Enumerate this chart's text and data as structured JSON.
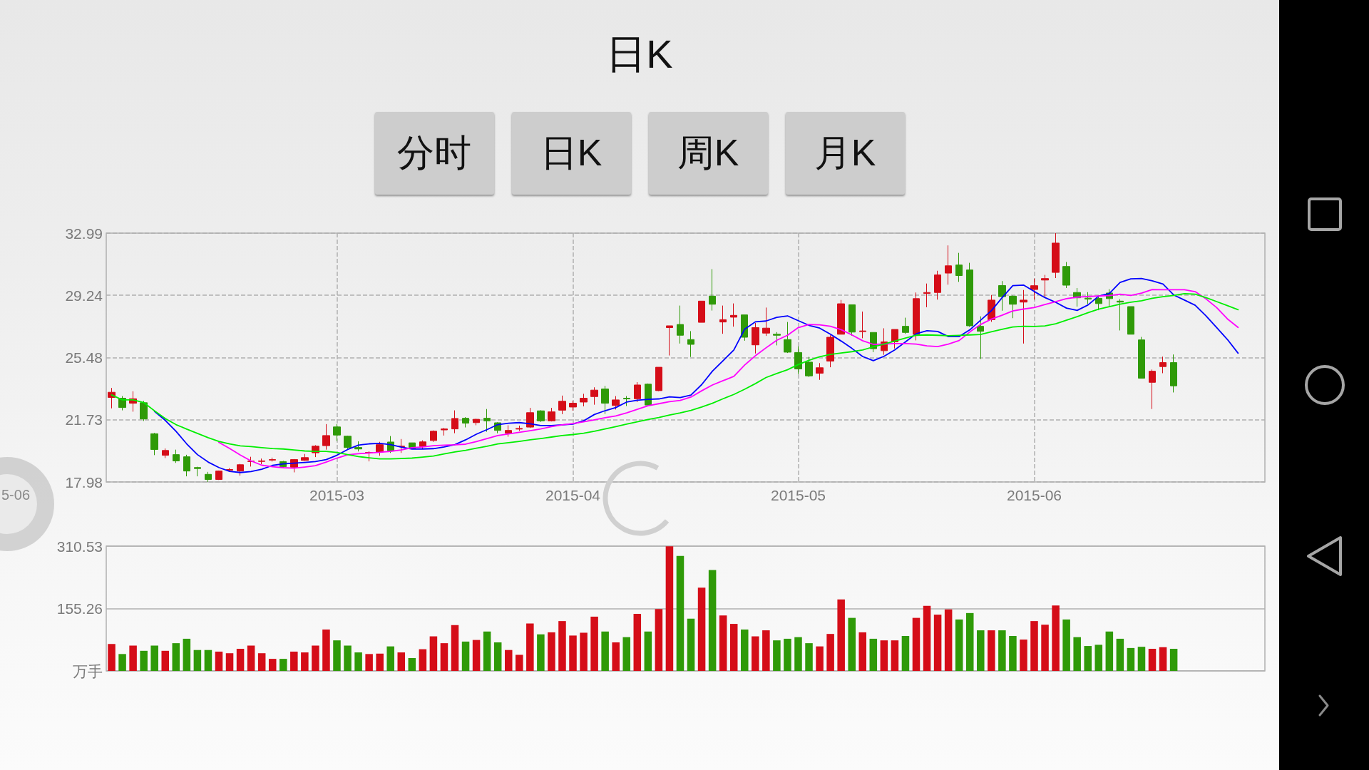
{
  "chart_data": [
    {
      "type": "other",
      "title": "日K",
      "annotations": [
        "分时",
        "日K",
        "周K",
        "月K"
      ]
    },
    {
      "type": "candlestick",
      "categories": [
        null,
        null,
        null,
        null,
        null,
        null,
        null,
        null,
        null,
        null,
        null,
        null,
        null,
        null,
        null,
        null,
        null,
        null,
        null,
        null,
        null,
        "2015-03",
        null,
        null,
        null,
        null,
        null,
        null,
        null,
        null,
        null,
        null,
        null,
        null,
        null,
        null,
        null,
        null,
        null,
        null,
        null,
        null,
        null,
        "2015-04",
        null,
        null,
        null,
        null,
        null,
        null,
        null,
        null,
        null,
        null,
        null,
        null,
        null,
        null,
        null,
        null,
        null,
        null,
        null,
        null,
        "2015-05",
        null,
        null,
        null,
        null,
        null,
        null,
        null,
        null,
        null,
        null,
        null,
        null,
        null,
        null,
        null,
        null,
        null,
        null,
        null,
        null,
        null,
        "2015-06",
        null,
        null,
        null,
        null,
        null,
        null,
        null,
        null,
        null,
        null,
        null,
        null,
        null,
        null,
        null,
        null,
        null,
        null,
        null,
        null,
        null
      ],
      "ohlc": [
        [
          23.08,
          23.65,
          22.42,
          23.39
        ],
        [
          23.03,
          23.16,
          22.3,
          22.47
        ],
        [
          22.73,
          23.45,
          22.22,
          23.0
        ],
        [
          22.76,
          22.87,
          21.66,
          21.78
        ],
        [
          20.89,
          20.94,
          19.6,
          19.94
        ],
        [
          19.59,
          20.0,
          19.42,
          19.88
        ],
        [
          19.63,
          19.93,
          19.13,
          19.25
        ],
        [
          19.5,
          19.62,
          18.32,
          18.64
        ],
        [
          18.85,
          18.9,
          18.32,
          18.79
        ],
        [
          18.44,
          18.59,
          17.98,
          18.13
        ],
        [
          18.13,
          18.67,
          18.1,
          18.64
        ],
        [
          18.69,
          18.81,
          18.61,
          18.73
        ],
        [
          18.64,
          19.07,
          18.36,
          19.02
        ],
        [
          19.21,
          19.5,
          18.91,
          19.24
        ],
        [
          19.22,
          19.39,
          19.05,
          19.25
        ],
        [
          19.3,
          19.45,
          19.21,
          19.33
        ],
        [
          19.21,
          19.25,
          18.85,
          18.9
        ],
        [
          18.87,
          19.36,
          18.56,
          19.33
        ],
        [
          19.28,
          19.67,
          19.25,
          19.45
        ],
        [
          19.74,
          20.2,
          19.48,
          20.14
        ],
        [
          20.17,
          21.47,
          19.93,
          20.78
        ],
        [
          21.3,
          21.47,
          20.45,
          20.81
        ],
        [
          20.74,
          20.77,
          19.97,
          20.06
        ],
        [
          20.06,
          20.43,
          19.82,
          19.97
        ],
        [
          19.73,
          19.83,
          19.22,
          19.76
        ],
        [
          19.79,
          20.4,
          19.56,
          20.23
        ],
        [
          20.39,
          20.75,
          19.73,
          19.86
        ],
        [
          20.11,
          20.57,
          19.73,
          20.14
        ],
        [
          20.34,
          20.34,
          20.0,
          20.0
        ],
        [
          20.12,
          20.49,
          20.0,
          20.4
        ],
        [
          20.48,
          21.09,
          20.4,
          21.04
        ],
        [
          21.12,
          21.24,
          20.78,
          21.18
        ],
        [
          21.18,
          22.3,
          20.92,
          21.81
        ],
        [
          21.82,
          21.89,
          21.27,
          21.53
        ],
        [
          21.56,
          21.79,
          21.4,
          21.76
        ],
        [
          21.82,
          22.38,
          21.01,
          21.67
        ],
        [
          21.55,
          21.58,
          20.92,
          21.09
        ],
        [
          20.92,
          21.4,
          20.71,
          21.09
        ],
        [
          21.17,
          21.38,
          21.06,
          21.21
        ],
        [
          21.29,
          22.45,
          21.24,
          22.16
        ],
        [
          22.27,
          22.31,
          21.6,
          21.67
        ],
        [
          21.67,
          22.45,
          21.63,
          22.21
        ],
        [
          22.31,
          23.19,
          22.07,
          22.85
        ],
        [
          22.5,
          22.88,
          22.28,
          22.73
        ],
        [
          22.8,
          23.3,
          22.54,
          23.03
        ],
        [
          23.13,
          23.69,
          22.64,
          23.52
        ],
        [
          23.59,
          23.78,
          22.08,
          22.73
        ],
        [
          22.59,
          23.16,
          22.35,
          22.93
        ],
        [
          23.03,
          23.16,
          22.56,
          22.99
        ],
        [
          23.0,
          24.0,
          22.8,
          23.83
        ],
        [
          23.88,
          23.92,
          22.59,
          22.62
        ],
        [
          23.49,
          24.9,
          23.46,
          24.9
        ],
        [
          27.29,
          27.4,
          25.61,
          27.4
        ],
        [
          27.48,
          28.62,
          26.33,
          26.83
        ],
        [
          26.57,
          27.08,
          25.52,
          26.28
        ],
        [
          27.61,
          28.89,
          27.61,
          28.89
        ],
        [
          29.19,
          30.82,
          28.32,
          28.7
        ],
        [
          27.63,
          28.62,
          26.92,
          27.77
        ],
        [
          27.92,
          28.75,
          27.35,
          28.03
        ],
        [
          28.06,
          28.06,
          26.5,
          26.71
        ],
        [
          26.25,
          27.57,
          25.73,
          27.29
        ],
        [
          26.96,
          28.5,
          26.79,
          27.26
        ],
        [
          26.89,
          27.02,
          26.22,
          26.83
        ],
        [
          26.57,
          27.63,
          25.76,
          25.81
        ],
        [
          25.79,
          26.16,
          24.49,
          24.8
        ],
        [
          25.21,
          25.53,
          24.31,
          24.38
        ],
        [
          24.54,
          25.15,
          24.14,
          24.87
        ],
        [
          25.27,
          26.83,
          24.9,
          26.71
        ],
        [
          26.89,
          28.96,
          26.89,
          28.73
        ],
        [
          28.67,
          28.67,
          26.8,
          27.02
        ],
        [
          27.05,
          28.26,
          26.65,
          27.09
        ],
        [
          27.0,
          27.0,
          25.81,
          26.02
        ],
        [
          25.9,
          27.25,
          25.65,
          26.43
        ],
        [
          26.43,
          27.18,
          26.03,
          27.18
        ],
        [
          27.37,
          27.89,
          26.92,
          27.0
        ],
        [
          26.88,
          29.41,
          26.52,
          29.04
        ],
        [
          29.35,
          29.95,
          28.52,
          29.41
        ],
        [
          29.41,
          30.72,
          28.98,
          30.47
        ],
        [
          30.58,
          32.25,
          29.88,
          31.02
        ],
        [
          31.07,
          31.8,
          30.05,
          30.43
        ],
        [
          30.77,
          31.2,
          27.34,
          27.4
        ],
        [
          27.37,
          27.97,
          25.4,
          27.07
        ],
        [
          27.77,
          29.26,
          27.64,
          28.95
        ],
        [
          29.83,
          30.1,
          28.31,
          29.16
        ],
        [
          29.19,
          29.23,
          27.86,
          28.7
        ],
        [
          28.83,
          29.56,
          26.33,
          28.95
        ],
        [
          29.59,
          30.25,
          28.98,
          29.82
        ],
        [
          30.16,
          30.47,
          29.09,
          30.25
        ],
        [
          30.62,
          32.99,
          30.28,
          32.39
        ],
        [
          30.98,
          31.25,
          29.68,
          29.85
        ],
        [
          29.41,
          29.68,
          28.56,
          29.09
        ],
        [
          29.07,
          29.43,
          28.71,
          29.01
        ],
        [
          29.06,
          29.16,
          28.34,
          28.74
        ],
        [
          29.38,
          29.61,
          28.53,
          29.04
        ],
        [
          28.89,
          29.01,
          27.12,
          28.83
        ],
        [
          28.56,
          28.56,
          26.89,
          26.89
        ],
        [
          26.55,
          26.73,
          24.24,
          24.24
        ],
        [
          23.99,
          24.76,
          22.38,
          24.66
        ],
        [
          24.94,
          25.54,
          24.54,
          25.18
        ],
        [
          25.18,
          25.67,
          23.38,
          23.78
        ],
        null,
        null,
        null,
        null,
        null,
        null,
        null,
        null
      ],
      "colors": [
        "#d50d18",
        "#2f9a08",
        "#d50d18",
        "#2f9a08",
        "#2f9a08",
        "#d50d18",
        "#2f9a08",
        "#2f9a08",
        "#2f9a08",
        "#2f9a08",
        "#d50d18",
        "#d50d18",
        "#d50d18",
        "#d50d18",
        "#d50d18",
        "#d50d18",
        "#2f9a08",
        "#d50d18",
        "#d50d18",
        "#d50d18",
        "#d50d18",
        "#2f9a08",
        "#2f9a08",
        "#2f9a08",
        "#d50d18",
        "#d50d18",
        "#2f9a08",
        "#d50d18",
        "#2f9a08",
        "#d50d18",
        "#d50d18",
        "#d50d18",
        "#d50d18",
        "#2f9a08",
        "#d50d18",
        "#2f9a08",
        "#2f9a08",
        "#d50d18",
        "#d50d18",
        "#d50d18",
        "#2f9a08",
        "#d50d18",
        "#d50d18",
        "#d50d18",
        "#d50d18",
        "#d50d18",
        "#2f9a08",
        "#d50d18",
        "#2f9a08",
        "#d50d18",
        "#2f9a08",
        "#d50d18",
        "#d50d18",
        "#2f9a08",
        "#2f9a08",
        "#d50d18",
        "#2f9a08",
        "#d50d18",
        "#d50d18",
        "#2f9a08",
        "#d50d18",
        "#d50d18",
        "#2f9a08",
        "#2f9a08",
        "#2f9a08",
        "#2f9a08",
        "#d50d18",
        "#d50d18",
        "#d50d18",
        "#2f9a08",
        "#d50d18",
        "#2f9a08",
        "#d50d18",
        "#d50d18",
        "#2f9a08",
        "#d50d18",
        "#d50d18",
        "#d50d18",
        "#d50d18",
        "#2f9a08",
        "#2f9a08",
        "#2f9a08",
        "#d50d18",
        "#2f9a08",
        "#2f9a08",
        "#d50d18",
        "#d50d18",
        "#d50d18",
        "#d50d18",
        "#2f9a08",
        "#2f9a08",
        "#2f9a08",
        "#2f9a08",
        "#2f9a08",
        "#2f9a08",
        "#2f9a08",
        "#2f9a08",
        "#d50d18",
        "#d50d18",
        "#2f9a08",
        null,
        null,
        null,
        null,
        null,
        null,
        null,
        null
      ],
      "series": [
        {
          "type": "line",
          "color": "#0000ff",
          "values": [
            null,
            null,
            null,
            null,
            22.24,
            21.7,
            21.04,
            20.28,
            19.63,
            19.18,
            18.85,
            18.62,
            18.55,
            18.61,
            18.75,
            18.98,
            19.07,
            19.11,
            19.16,
            19.21,
            19.33,
            19.59,
            19.94,
            20.2,
            20.28,
            20.31,
            20.23,
            20.08,
            19.96,
            19.97,
            19.99,
            20.09,
            20.23,
            20.52,
            20.86,
            21.14,
            21.44,
            21.52,
            21.56,
            21.49,
            21.38,
            21.38,
            21.43,
            21.47,
            21.67,
            22.05,
            22.28,
            22.47,
            22.8,
            22.91,
            22.96,
            22.99,
            23.11,
            23.07,
            23.22,
            23.85,
            24.66,
            25.3,
            25.94,
            27.19,
            27.64,
            27.69,
            27.91,
            28.0,
            27.71,
            27.43,
            27.26,
            26.89,
            26.48,
            26.04,
            25.55,
            25.3,
            25.56,
            25.95,
            26.43,
            26.92,
            27.1,
            27.06,
            26.75,
            26.75,
            27.16,
            27.74,
            28.31,
            29.09,
            29.82,
            29.86,
            29.47,
            29.1,
            28.82,
            28.47,
            28.33,
            28.65,
            29.19,
            29.35,
            30.02,
            30.23,
            30.25,
            30.11,
            29.92,
            29.26,
            28.95,
            28.64,
            28.01,
            27.3,
            26.58,
            25.75,
            null,
            null
          ]
        },
        {
          "type": "line",
          "color": "#ff00ff",
          "values": [
            null,
            null,
            null,
            null,
            null,
            null,
            null,
            null,
            null,
            null,
            20.37,
            20.0,
            19.6,
            19.25,
            18.99,
            18.9,
            18.84,
            18.81,
            18.88,
            18.96,
            19.18,
            19.42,
            19.62,
            19.68,
            19.73,
            19.77,
            19.83,
            19.91,
            20.05,
            20.09,
            20.17,
            20.2,
            20.22,
            20.26,
            20.42,
            20.6,
            20.78,
            20.88,
            20.97,
            21.07,
            21.18,
            21.32,
            21.43,
            21.5,
            21.61,
            21.73,
            21.86,
            21.96,
            22.15,
            22.36,
            22.58,
            22.7,
            22.82,
            22.9,
            23.1,
            23.48,
            23.83,
            24.09,
            24.35,
            25.03,
            25.59,
            26.07,
            26.53,
            26.83,
            27.29,
            27.48,
            27.46,
            27.37,
            27.17,
            26.85,
            26.5,
            26.28,
            26.3,
            26.33,
            26.33,
            26.3,
            26.19,
            26.15,
            26.3,
            26.51,
            27.03,
            27.48,
            27.8,
            28.04,
            28.3,
            28.41,
            28.5,
            28.68,
            28.86,
            29.04,
            29.13,
            29.17,
            29.2,
            29.22,
            29.31,
            29.23,
            29.37,
            29.59,
            29.58,
            29.58,
            29.58,
            29.46,
            29.03,
            28.5,
            27.82,
            27.3,
            null,
            null
          ]
        },
        {
          "type": "line",
          "color": "#00ee00",
          "values": [
            23.23,
            22.93,
            22.93,
            22.77,
            22.27,
            21.81,
            21.44,
            21.17,
            20.91,
            20.65,
            20.43,
            20.28,
            20.16,
            20.11,
            20.05,
            20.0,
            19.97,
            19.91,
            19.85,
            19.82,
            19.82,
            19.76,
            19.63,
            19.51,
            19.44,
            19.37,
            19.37,
            19.39,
            19.42,
            19.48,
            19.54,
            19.67,
            19.79,
            19.89,
            20.02,
            20.14,
            20.28,
            20.35,
            20.43,
            20.52,
            20.6,
            20.69,
            20.78,
            20.84,
            20.92,
            21.04,
            21.18,
            21.32,
            21.47,
            21.61,
            21.75,
            21.87,
            22.02,
            22.15,
            22.3,
            22.5,
            22.73,
            23.0,
            23.26,
            23.57,
            23.91,
            24.28,
            24.52,
            24.75,
            25.06,
            25.32,
            25.53,
            25.67,
            25.76,
            25.84,
            25.94,
            26.13,
            26.3,
            26.48,
            26.66,
            26.83,
            26.85,
            26.83,
            26.8,
            26.82,
            26.85,
            26.88,
            27.04,
            27.19,
            27.33,
            27.37,
            27.36,
            27.39,
            27.52,
            27.74,
            27.95,
            28.19,
            28.4,
            28.56,
            28.71,
            28.82,
            28.91,
            29.06,
            29.16,
            29.23,
            29.34,
            29.31,
            29.1,
            28.86,
            28.62,
            28.37,
            null,
            null
          ]
        }
      ],
      "ylim": [
        17.98,
        32.99
      ],
      "yticks": [
        17.98,
        21.73,
        25.48,
        29.24,
        32.99
      ],
      "grid": true,
      "marker": "none",
      "line_style": "solid",
      "annotations": [
        "5-06"
      ]
    },
    {
      "type": "bar",
      "categories": [
        null,
        null,
        null,
        null,
        null,
        null,
        null,
        null,
        null,
        null,
        null,
        null,
        null,
        null,
        null,
        null,
        null,
        null,
        null,
        null,
        null,
        null,
        null,
        null,
        null,
        null,
        null,
        null,
        null,
        null,
        null,
        null,
        null,
        null,
        null,
        null,
        null,
        null,
        null,
        null,
        null,
        null,
        null,
        null,
        null,
        null,
        null,
        null,
        null,
        null,
        null,
        null,
        null,
        null,
        null,
        null,
        null,
        null,
        null,
        null,
        null,
        null,
        null,
        null,
        null,
        null,
        null,
        null,
        null,
        null,
        null,
        null,
        null,
        null,
        null,
        null,
        null,
        null,
        null,
        null,
        null,
        null,
        null,
        null,
        null,
        null,
        null,
        null,
        null,
        null,
        null,
        null,
        null,
        null,
        null,
        null,
        null,
        null,
        null,
        null,
        null,
        null,
        null,
        null,
        null,
        null,
        null,
        null
      ],
      "values": [
        67,
        42,
        63,
        50,
        63,
        50,
        69,
        80,
        52,
        52,
        48,
        44,
        55,
        63,
        44,
        30,
        30,
        48,
        46,
        63,
        103,
        76,
        63,
        46,
        42,
        43,
        61,
        46,
        32,
        54,
        86,
        69,
        114,
        73,
        77,
        98,
        71,
        52,
        40,
        118,
        91,
        96,
        124,
        88,
        95,
        135,
        98,
        71,
        84,
        142,
        98,
        154,
        310,
        286,
        130,
        207,
        251,
        138,
        117,
        103,
        86,
        101,
        76,
        80,
        84,
        69,
        61,
        92,
        178,
        132,
        96,
        80,
        76,
        76,
        87,
        132,
        162,
        140,
        153,
        128,
        144,
        101,
        101,
        101,
        87,
        78,
        124,
        115,
        163,
        128,
        84,
        62,
        65,
        98,
        80,
        57,
        60,
        55,
        59,
        55,
        null,
        null,
        null,
        null,
        null,
        null,
        null,
        null
      ],
      "colors": [
        "#d50d18",
        "#2f9a08",
        "#d50d18",
        "#2f9a08",
        "#2f9a08",
        "#d50d18",
        "#2f9a08",
        "#2f9a08",
        "#2f9a08",
        "#2f9a08",
        "#d50d18",
        "#d50d18",
        "#d50d18",
        "#d50d18",
        "#d50d18",
        "#d50d18",
        "#2f9a08",
        "#d50d18",
        "#d50d18",
        "#d50d18",
        "#d50d18",
        "#2f9a08",
        "#2f9a08",
        "#2f9a08",
        "#d50d18",
        "#d50d18",
        "#2f9a08",
        "#d50d18",
        "#2f9a08",
        "#d50d18",
        "#d50d18",
        "#d50d18",
        "#d50d18",
        "#2f9a08",
        "#d50d18",
        "#2f9a08",
        "#2f9a08",
        "#d50d18",
        "#d50d18",
        "#d50d18",
        "#2f9a08",
        "#d50d18",
        "#d50d18",
        "#d50d18",
        "#d50d18",
        "#d50d18",
        "#2f9a08",
        "#d50d18",
        "#2f9a08",
        "#d50d18",
        "#2f9a08",
        "#d50d18",
        "#d50d18",
        "#2f9a08",
        "#2f9a08",
        "#d50d18",
        "#2f9a08",
        "#d50d18",
        "#d50d18",
        "#2f9a08",
        "#d50d18",
        "#d50d18",
        "#2f9a08",
        "#2f9a08",
        "#2f9a08",
        "#2f9a08",
        "#d50d18",
        "#d50d18",
        "#d50d18",
        "#2f9a08",
        "#d50d18",
        "#2f9a08",
        "#d50d18",
        "#d50d18",
        "#2f9a08",
        "#d50d18",
        "#d50d18",
        "#d50d18",
        "#d50d18",
        "#2f9a08",
        "#2f9a08",
        "#2f9a08",
        "#d50d18",
        "#2f9a08",
        "#2f9a08",
        "#d50d18",
        "#d50d18",
        "#d50d18",
        "#d50d18",
        "#2f9a08",
        "#2f9a08",
        "#2f9a08",
        "#2f9a08",
        "#2f9a08",
        "#2f9a08",
        "#2f9a08",
        "#2f9a08",
        "#d50d18",
        "#d50d18",
        "#2f9a08",
        null,
        null,
        null,
        null,
        null,
        null,
        null,
        null
      ],
      "ylim": [
        0,
        310.53
      ],
      "yticks": [
        {
          "value": 0,
          "label": "万手"
        },
        155.26,
        310.53
      ],
      "grid": "y",
      "tick_labels": "y"
    }
  ]
}
